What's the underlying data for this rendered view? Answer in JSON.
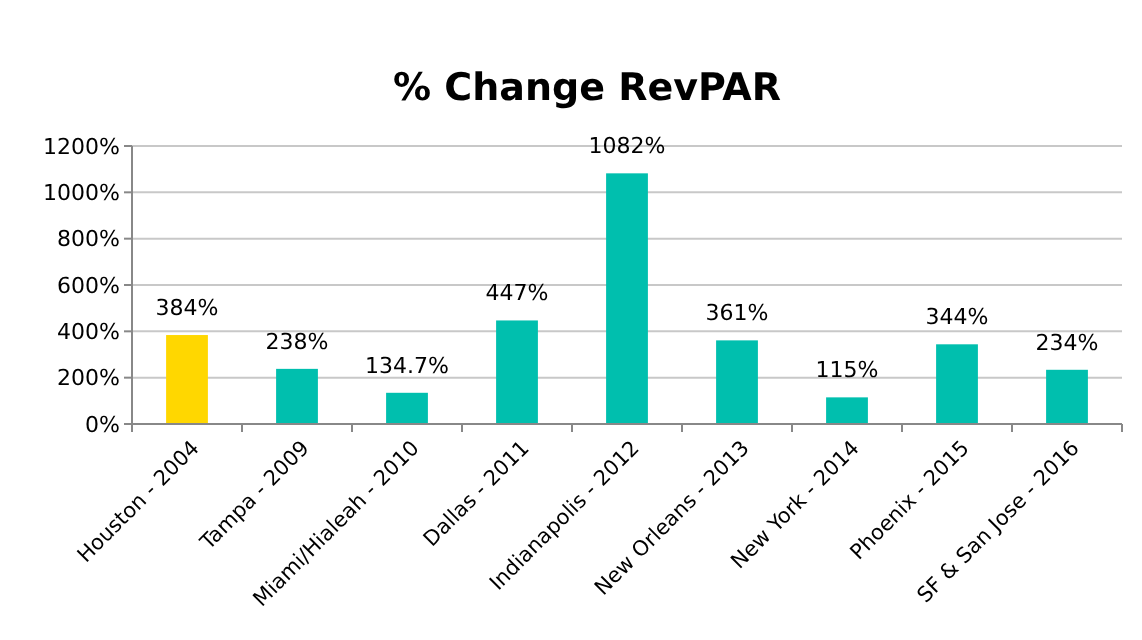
{
  "chart_data": {
    "type": "bar",
    "title": "% Change RevPAR",
    "categories": [
      "Houston - 2004",
      "Tampa - 2009",
      "Miami/Hialeah - 2010",
      "Dallas - 2011",
      "Indianapolis - 2012",
      "New Orleans - 2013",
      "New York - 2014",
      "Phoenix - 2015",
      "SF & San Jose - 2016"
    ],
    "values": [
      384,
      238,
      134.7,
      447,
      1082,
      361,
      115,
      344,
      234
    ],
    "colors": [
      "#ffd700",
      "#00bfae",
      "#00bfae",
      "#00bfae",
      "#00bfae",
      "#00bfae",
      "#00bfae",
      "#00bfae",
      "#00bfae"
    ],
    "value_labels": [
      "384%",
      "238%",
      "134.7%",
      "447%",
      "1082%",
      "361%",
      "115%",
      "344%",
      "234%"
    ],
    "ylim": [
      0,
      1200
    ],
    "yticks": [
      {
        "value": 0,
        "label": "0%"
      },
      {
        "value": 200,
        "label": "200%"
      },
      {
        "value": 400,
        "label": "400%"
      },
      {
        "value": 600,
        "label": "600%"
      },
      {
        "value": 800,
        "label": "800%"
      },
      {
        "value": 1000,
        "label": "1000%"
      },
      {
        "value": 1200,
        "label": "1200%"
      }
    ],
    "grid": "y"
  }
}
